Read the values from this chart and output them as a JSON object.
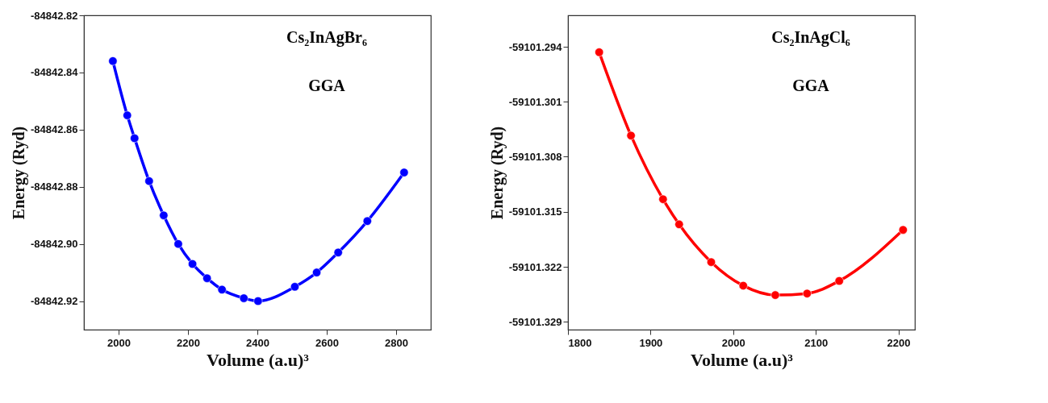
{
  "chart_data": [
    {
      "type": "line",
      "xlabel": "Volume (a.u)³",
      "ylabel": "Energy (Ryd)",
      "annotations": [
        "Cs₂InAgBr₆",
        "GGA"
      ],
      "marker": "circle",
      "grid": false,
      "x": [
        1983.5,
        2025,
        2046,
        2088,
        2130,
        2172,
        2213,
        2255,
        2298,
        2361,
        2402,
        2508,
        2571,
        2633,
        2717,
        2823
      ],
      "series": [
        {
          "color": "#0000ff",
          "values": [
            -84842.836,
            -84842.855,
            -84842.863,
            -84842.878,
            -84842.89,
            -84842.9,
            -84842.907,
            -84842.912,
            -84842.916,
            -84842.919,
            -84842.92,
            -84842.915,
            -84842.91,
            -84842.903,
            -84842.892,
            -84842.875
          ]
        }
      ],
      "xlim": [
        1900,
        2900
      ],
      "xticks": [
        2000,
        2200,
        2400,
        2600,
        2800
      ],
      "ylim": [
        -84842.93,
        -84842.82
      ],
      "yticks": [
        -84842.82,
        -84842.84,
        -84842.86,
        -84842.88,
        {
          "value": -84842.9,
          "label": "-84842.90"
        },
        -84842.92
      ]
    },
    {
      "type": "line",
      "xlabel": "Volume (a.u)³",
      "ylabel": "Energy (Ryd)",
      "annotations": [
        "Cs₂InAgCl₆",
        "GGA"
      ],
      "marker": "circle",
      "grid": false,
      "x": [
        1837.8,
        1876.3,
        1915.1,
        1934.6,
        1973.4,
        2012.2,
        2051.0,
        2089.5,
        2128.4,
        2205.7
      ],
      "series": [
        {
          "color": "#ff0000",
          "values": [
            -59101.2947,
            -59101.3053,
            -59101.3134,
            -59101.3166,
            -59101.3214,
            -59101.3244,
            -59101.3256,
            -59101.3254,
            -59101.3238,
            -59101.3173
          ]
        }
      ],
      "xlim": [
        1800,
        2220
      ],
      "xticks": [
        1800,
        1900,
        2000,
        2100,
        2200
      ],
      "ylim": [
        -59101.33,
        -59101.29
      ],
      "yticks": [
        -59101.294,
        -59101.301,
        -59101.308,
        -59101.315,
        -59101.322,
        -59101.329
      ]
    }
  ]
}
